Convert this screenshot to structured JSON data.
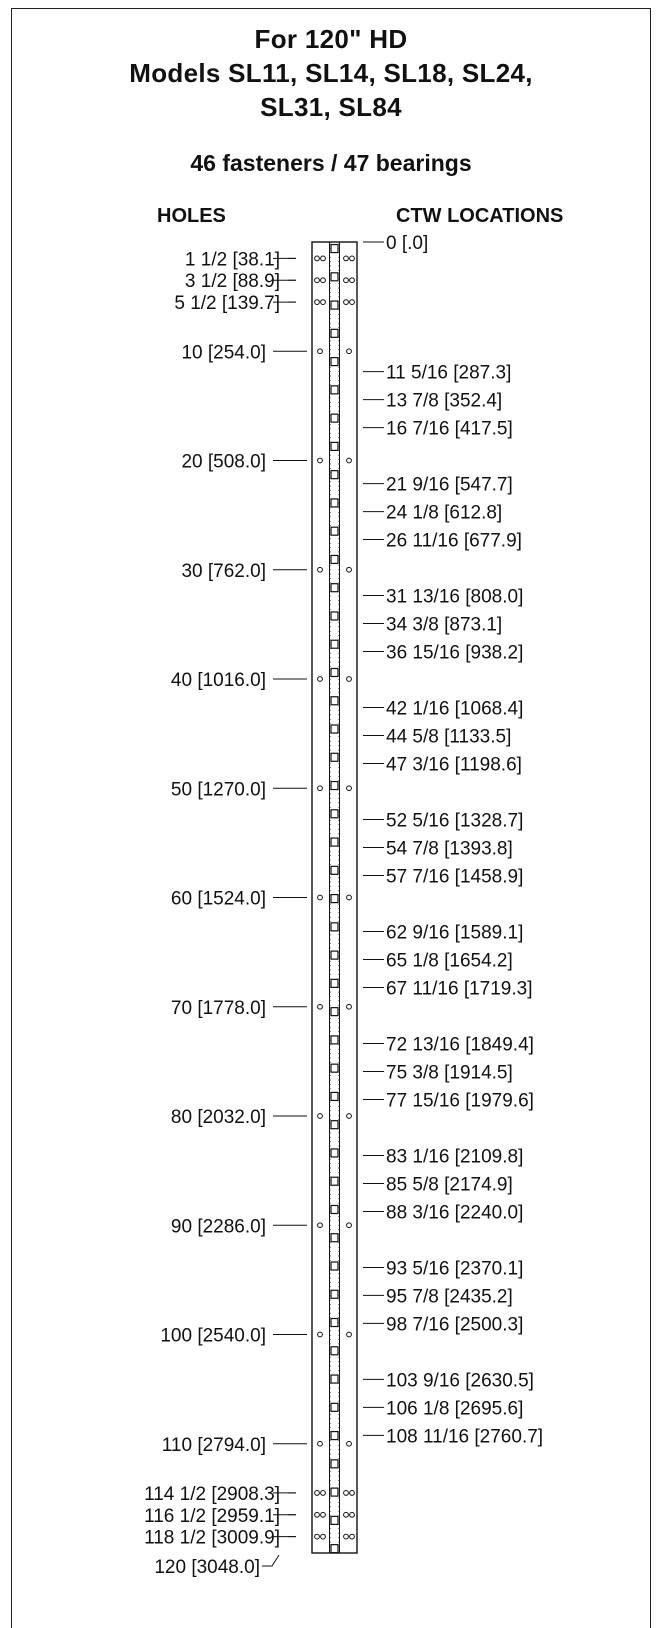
{
  "title_lines": [
    "For 120\" HD",
    "Models SL11, SL14, SL18, SL24,",
    "SL31, SL84"
  ],
  "subtitle": "46 fasteners / 47 bearings",
  "headers": {
    "holes": "HOLES",
    "ctw": "CTW LOCATIONS"
  },
  "holes": [
    {
      "pos": 1.5,
      "label": "1 1/2 [38.1]",
      "double": true
    },
    {
      "pos": 3.5,
      "label": "3 1/2 [88.9]",
      "double": true
    },
    {
      "pos": 5.5,
      "label": "5 1/2 [139.7]",
      "double": true
    },
    {
      "pos": 10,
      "label": "10 [254.0]",
      "double": false
    },
    {
      "pos": 20,
      "label": "20 [508.0]",
      "double": false
    },
    {
      "pos": 30,
      "label": "30 [762.0]",
      "double": false
    },
    {
      "pos": 40,
      "label": "40 [1016.0]",
      "double": false
    },
    {
      "pos": 50,
      "label": "50 [1270.0]",
      "double": false
    },
    {
      "pos": 60,
      "label": "60 [1524.0]",
      "double": false
    },
    {
      "pos": 70,
      "label": "70 [1778.0]",
      "double": false
    },
    {
      "pos": 80,
      "label": "80 [2032.0]",
      "double": false
    },
    {
      "pos": 90,
      "label": "90 [2286.0]",
      "double": false
    },
    {
      "pos": 100,
      "label": "100 [2540.0]",
      "double": false
    },
    {
      "pos": 110,
      "label": "110 [2794.0]",
      "double": false
    },
    {
      "pos": 114.5,
      "label": "114 1/2 [2908.3]",
      "double": true
    },
    {
      "pos": 116.5,
      "label": "116 1/2 [2959.1]",
      "double": true
    },
    {
      "pos": 118.5,
      "label": "118 1/2 [3009.9]",
      "double": true
    }
  ],
  "end_label": {
    "pos": 120,
    "label": "120 [3048.0]"
  },
  "ctw": [
    {
      "pos": 0,
      "label": "0 [.0]"
    },
    {
      "pos": 11.3125,
      "label": "11 5/16 [287.3]"
    },
    {
      "pos": 13.875,
      "label": "13 7/8 [352.4]"
    },
    {
      "pos": 16.4375,
      "label": "16 7/16 [417.5]"
    },
    {
      "pos": 21.5625,
      "label": "21 9/16 [547.7]"
    },
    {
      "pos": 24.125,
      "label": "24 1/8 [612.8]"
    },
    {
      "pos": 26.6875,
      "label": "26 11/16 [677.9]"
    },
    {
      "pos": 31.8125,
      "label": "31 13/16 [808.0]"
    },
    {
      "pos": 34.375,
      "label": "34 3/8 [873.1]"
    },
    {
      "pos": 36.9375,
      "label": "36 15/16 [938.2]"
    },
    {
      "pos": 42.0625,
      "label": "42 1/16 [1068.4]"
    },
    {
      "pos": 44.625,
      "label": "44 5/8 [1133.5]"
    },
    {
      "pos": 47.1875,
      "label": "47 3/16 [1198.6]"
    },
    {
      "pos": 52.3125,
      "label": "52 5/16 [1328.7]"
    },
    {
      "pos": 54.875,
      "label": "54 7/8 [1393.8]"
    },
    {
      "pos": 57.4375,
      "label": "57 7/16 [1458.9]"
    },
    {
      "pos": 62.5625,
      "label": "62 9/16 [1589.1]"
    },
    {
      "pos": 65.125,
      "label": "65 1/8 [1654.2]"
    },
    {
      "pos": 67.6875,
      "label": "67 11/16 [1719.3]"
    },
    {
      "pos": 72.8125,
      "label": "72 13/16 [1849.4]"
    },
    {
      "pos": 75.375,
      "label": "75 3/8 [1914.5]"
    },
    {
      "pos": 77.9375,
      "label": "77 15/16 [1979.6]"
    },
    {
      "pos": 83.0625,
      "label": "83 1/16 [2109.8]"
    },
    {
      "pos": 85.625,
      "label": "85 5/8 [2174.9]"
    },
    {
      "pos": 88.1875,
      "label": "88 3/16 [2240.0]"
    },
    {
      "pos": 93.3125,
      "label": "93 5/16 [2370.1]"
    },
    {
      "pos": 95.875,
      "label": "95 7/8 [2435.2]"
    },
    {
      "pos": 98.4375,
      "label": "98 7/16 [2500.3]"
    },
    {
      "pos": 103.5625,
      "label": "103 9/16 [2630.5]"
    },
    {
      "pos": 106.125,
      "label": "106 1/8 [2695.6]"
    },
    {
      "pos": 108.6875,
      "label": "108 11/16 [2760.7]"
    }
  ]
}
